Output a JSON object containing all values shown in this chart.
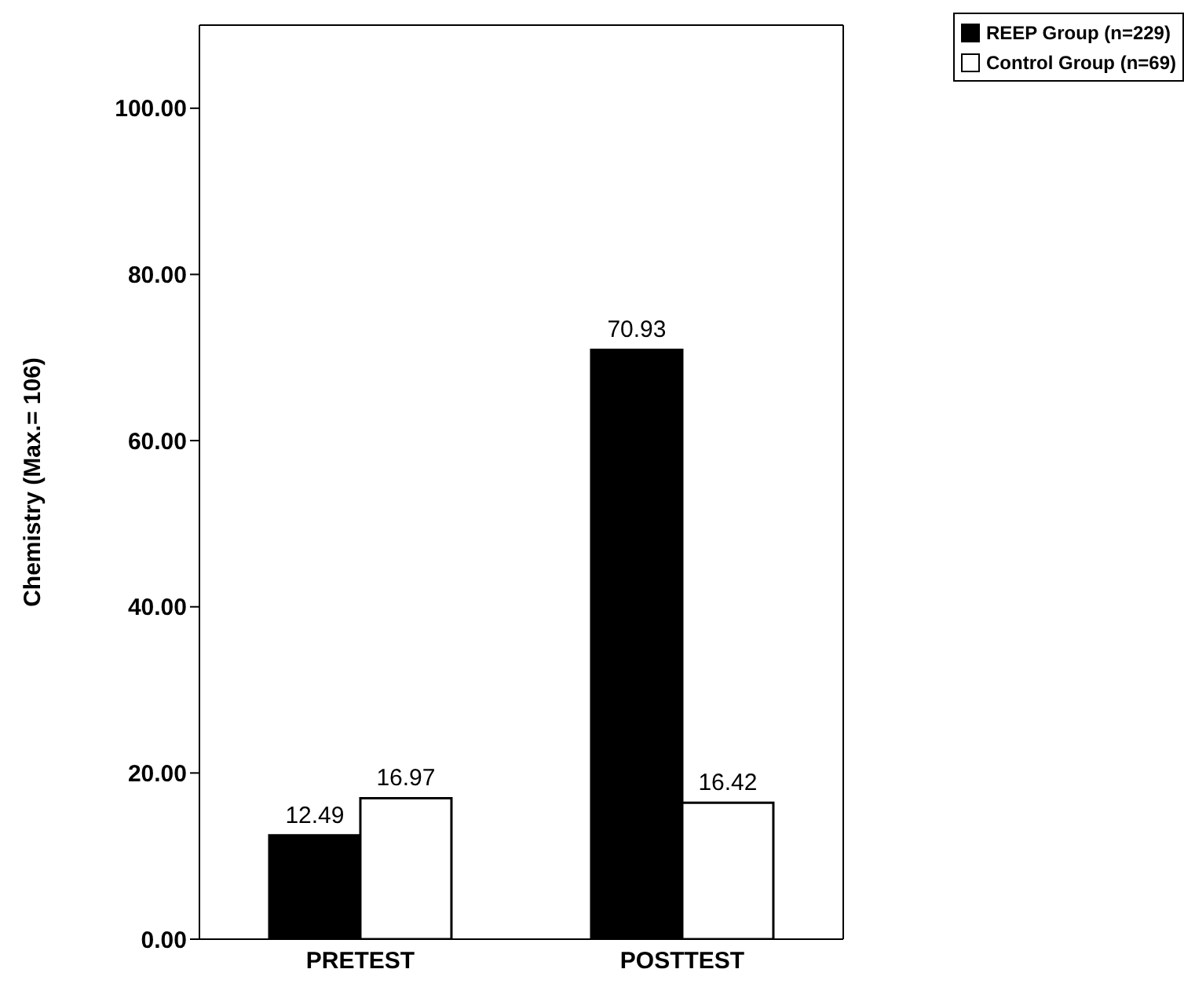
{
  "chart_data": {
    "type": "bar",
    "ylabel": "Chemistry (Max.= 106)",
    "categories": [
      "PRETEST",
      "POSTTEST"
    ],
    "series": [
      {
        "name": "REEP Group (n=229)",
        "color": "#000000",
        "values": [
          12.49,
          70.93
        ]
      },
      {
        "name": "Control Group (n=69)",
        "color": "#ffffff",
        "values": [
          16.97,
          16.42
        ]
      }
    ],
    "ylim": [
      0,
      110
    ],
    "yticks": [
      {
        "value": 0,
        "label": "0.00"
      },
      {
        "value": 20,
        "label": "20.00"
      },
      {
        "value": 40,
        "label": "40.00"
      },
      {
        "value": 60,
        "label": "60.00"
      },
      {
        "value": 80,
        "label": "80.00"
      },
      {
        "value": 100,
        "label": "100.00"
      }
    ],
    "data_labels": true,
    "legend": "top right",
    "grid": false
  }
}
